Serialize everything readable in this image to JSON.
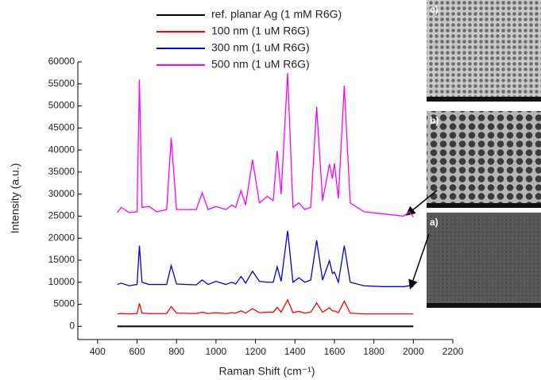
{
  "chart_data": {
    "type": "line",
    "xlabel": "Raman Shift (cm⁻¹)",
    "ylabel": "Intensity (a.u.)",
    "x": [
      500,
      520,
      560,
      600,
      612,
      625,
      660,
      700,
      750,
      773,
      800,
      900,
      930,
      960,
      1000,
      1050,
      1080,
      1100,
      1127,
      1150,
      1185,
      1220,
      1260,
      1290,
      1310,
      1330,
      1363,
      1390,
      1420,
      1450,
      1480,
      1510,
      1540,
      1575,
      1590,
      1600,
      1620,
      1650,
      1680,
      1750,
      1850,
      1950,
      1980,
      2000
    ],
    "series": [
      {
        "name": "ref. planar Ag (1 mM R6G)",
        "color": "#000000",
        "values": [
          0,
          0,
          0,
          0,
          0,
          0,
          0,
          0,
          0,
          0,
          0,
          0,
          0,
          0,
          0,
          0,
          0,
          0,
          0,
          0,
          0,
          0,
          0,
          0,
          0,
          0,
          0,
          0,
          0,
          0,
          0,
          0,
          0,
          0,
          0,
          0,
          0,
          0,
          0,
          0,
          0,
          0,
          0,
          0
        ]
      },
      {
        "name": "100 nm (1 uM R6G)",
        "color": "#ff0000",
        "values": [
          2800,
          2900,
          2800,
          2900,
          5200,
          3000,
          2900,
          2900,
          2900,
          4500,
          3000,
          2900,
          3200,
          2900,
          3100,
          2900,
          3100,
          3000,
          3500,
          3000,
          4000,
          3100,
          3200,
          3200,
          4300,
          3200,
          6000,
          3100,
          3400,
          3000,
          3200,
          5300,
          3200,
          4200,
          3500,
          3500,
          3100,
          5700,
          3000,
          2800,
          2800,
          2800,
          2800,
          2800
        ]
      },
      {
        "name": "300 nm  (1 uM R6G)",
        "color": "#0000dd",
        "values": [
          9500,
          9800,
          9200,
          9500,
          18300,
          10000,
          9500,
          9500,
          9500,
          13800,
          9600,
          9400,
          10500,
          9500,
          10200,
          9500,
          10000,
          9600,
          11300,
          9800,
          12500,
          10200,
          10000,
          10000,
          13500,
          10200,
          21700,
          10000,
          11000,
          10000,
          10500,
          19500,
          10500,
          14900,
          12000,
          12300,
          10000,
          18300,
          10000,
          9200,
          9000,
          9000,
          9200,
          9000
        ]
      },
      {
        "name": "500 nm (1 uM R6G)",
        "color": "#ff00ff",
        "values": [
          25800,
          27000,
          25800,
          26000,
          56000,
          27000,
          27200,
          26000,
          26500,
          42800,
          26500,
          26500,
          30300,
          26500,
          27200,
          26500,
          27500,
          27000,
          30800,
          27500,
          37800,
          28000,
          29500,
          28500,
          39800,
          30000,
          57500,
          27000,
          28000,
          26500,
          27000,
          49800,
          28500,
          36800,
          33500,
          37000,
          29000,
          54600,
          28000,
          26000,
          25500,
          25000,
          26000,
          24800
        ]
      }
    ],
    "xlim": [
      300,
      2200
    ],
    "xticks": [
      400,
      600,
      800,
      1000,
      1200,
      1400,
      1600,
      1800,
      2000,
      2200
    ],
    "ylim": [
      -3000,
      60000
    ],
    "yticks": [
      0,
      5000,
      10000,
      15000,
      20000,
      25000,
      30000,
      35000,
      40000,
      45000,
      50000,
      55000,
      60000
    ],
    "grid": false,
    "legend": "top",
    "annotations": [
      "c)",
      "b)",
      "a)"
    ]
  }
}
